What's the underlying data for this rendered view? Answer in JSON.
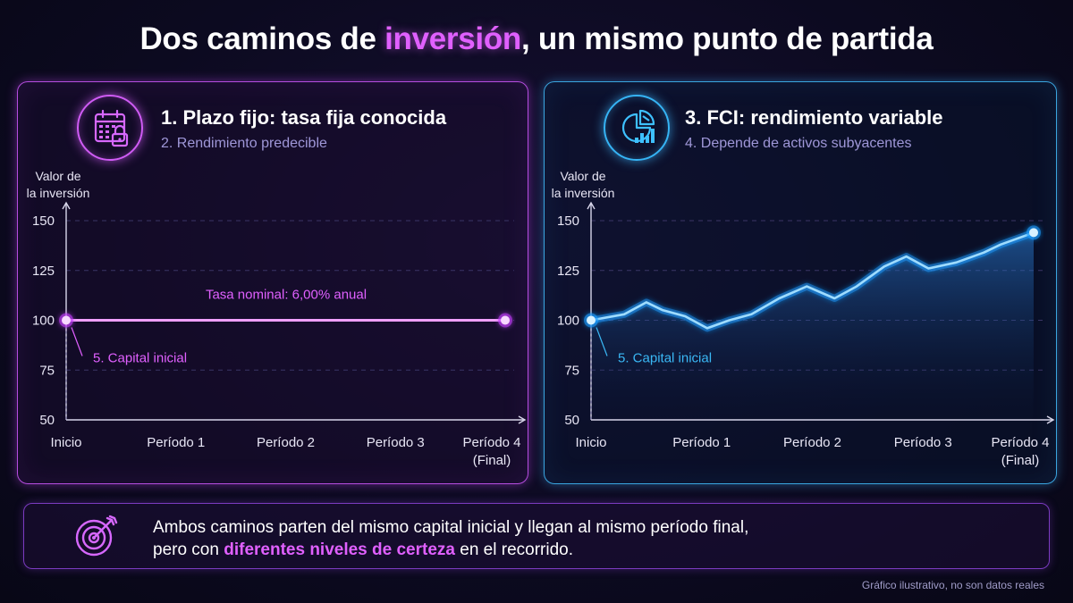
{
  "title": {
    "before": "Dos caminos de ",
    "highlight": "inversión",
    "after": ", un mismo punto de partida"
  },
  "colors": {
    "accent_magenta": "#e060ff",
    "accent_blue": "#3ab8f5",
    "background": "#0c0a20"
  },
  "left_panel": {
    "icon": "calendar-lock-icon",
    "title": "1. Plazo fijo: tasa fija conocida",
    "subtitle": "2. Rendimiento predecible",
    "annotation": "Tasa nominal: 6,00% anual",
    "start_label": "5. Capital inicial"
  },
  "right_panel": {
    "icon": "pie-chart-bars-icon",
    "title": "3. FCI: rendimiento variable",
    "subtitle": "4. Depende de activos subyacentes",
    "start_label": "5. Capital inicial"
  },
  "chart_data": [
    {
      "type": "line",
      "ylabel_lines": [
        "Valor de",
        "la inversión"
      ],
      "xlabel": "",
      "ylim": [
        50,
        150
      ],
      "yticks": [
        150,
        125,
        100,
        75,
        50
      ],
      "categories": [
        "Inicio",
        "Período 1",
        "Período 2",
        "Período 3",
        "Período 4 (Final)"
      ],
      "category_lines": [
        [
          "Inicio"
        ],
        [
          "Período 1"
        ],
        [
          "Período 2"
        ],
        [
          "Período 3"
        ],
        [
          "Período 4",
          "(Final)"
        ]
      ],
      "grid": true,
      "series": [
        {
          "x": [
            0,
            4
          ],
          "y": [
            100,
            100
          ]
        }
      ]
    },
    {
      "type": "area",
      "ylabel_lines": [
        "Valor de",
        "la inversión"
      ],
      "xlabel": "",
      "ylim": [
        50,
        150
      ],
      "yticks": [
        150,
        125,
        100,
        75,
        50
      ],
      "categories": [
        "Inicio",
        "Período 1",
        "Período 2",
        "Período 3",
        "Período 4 (Final)"
      ],
      "category_lines": [
        [
          "Inicio"
        ],
        [
          "Período 1"
        ],
        [
          "Período 2"
        ],
        [
          "Período 3"
        ],
        [
          "Período 4",
          "(Final)"
        ]
      ],
      "grid": true,
      "series": [
        {
          "x": [
            0,
            0.3,
            0.5,
            0.65,
            0.85,
            1.05,
            1.25,
            1.45,
            1.7,
            1.95,
            2.2,
            2.4,
            2.65,
            2.85,
            3.05,
            3.3,
            3.55,
            3.7,
            4.0
          ],
          "y": [
            100,
            103,
            109,
            105,
            102,
            96,
            100,
            103,
            111,
            117,
            111,
            117,
            127,
            132,
            126,
            129,
            134,
            138,
            144
          ]
        }
      ]
    }
  ],
  "bottom": {
    "icon": "target-arrow-icon",
    "line1": "Ambos caminos parten del mismo capital inicial y llegan al mismo período final,",
    "line2_before": "pero con ",
    "line2_highlight": "diferentes niveles de certeza",
    "line2_after": " en el recorrido."
  },
  "footnote": "Gráfico ilustrativo, no son datos reales"
}
